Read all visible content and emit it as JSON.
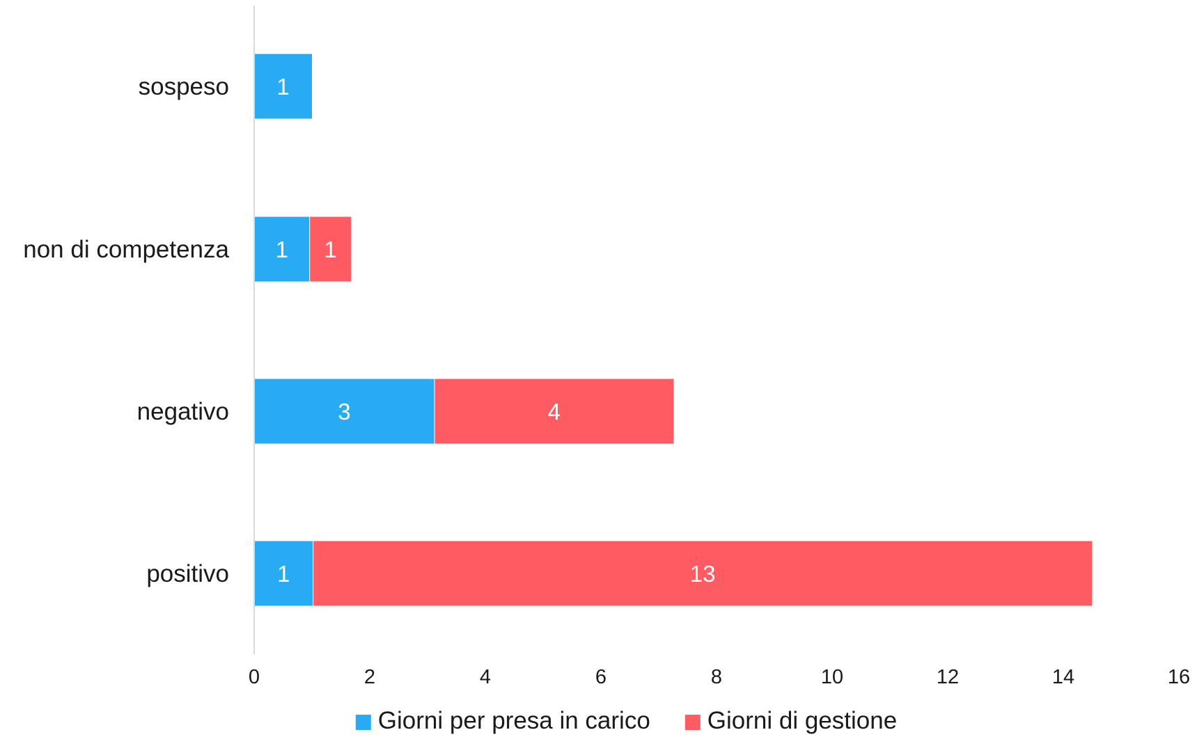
{
  "chart_data": {
    "type": "bar",
    "orientation": "horizontal",
    "stacked": true,
    "categories": [
      "sospeso",
      "non di competenza",
      "negativo",
      "positivo"
    ],
    "series": [
      {
        "name": "Giorni per presa in carico",
        "color": "#29abf4",
        "values": [
          1,
          0.96,
          3.12,
          1.02
        ],
        "data_labels": [
          "1",
          "1",
          "3",
          "1"
        ]
      },
      {
        "name": "Giorni di gestione",
        "color": "#fe5b63",
        "values": [
          0,
          0.72,
          4.14,
          13.48
        ],
        "data_labels": [
          "",
          "1",
          "4",
          "13"
        ]
      }
    ],
    "xlim": [
      0,
      16
    ],
    "x_ticks": [
      "0",
      "2",
      "4",
      "6",
      "8",
      "10",
      "12",
      "14",
      "16"
    ],
    "grid": false,
    "legend_position": "bottom",
    "title": "",
    "xlabel": "",
    "ylabel": ""
  }
}
